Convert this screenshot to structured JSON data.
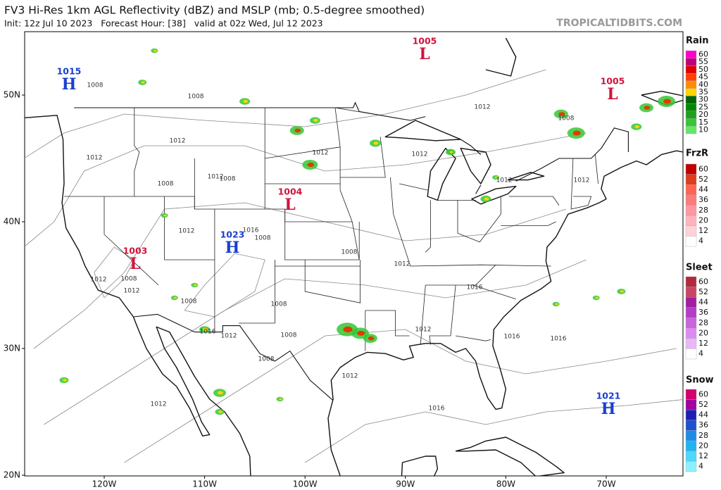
{
  "header": {
    "title": "FV3 Hi-Res 1km AGL Reflectivity (dBZ) and MSLP (mb; 0.5-degree smoothed)",
    "subtitle": "Init: 12z Jul 10 2023   Forecast Hour: [38]   valid at 02z Wed, Jul 12 2023",
    "source": "TROPICALTIDBITS.COM"
  },
  "map": {
    "lat_labels": [
      "50N",
      "40N",
      "30N",
      "20N"
    ],
    "lon_labels": [
      "120W",
      "110W",
      "100W",
      "90W",
      "80W",
      "70W"
    ],
    "pressure_centers": [
      {
        "value": 1015,
        "symbol": "H",
        "color": "#1a3fd0"
      },
      {
        "value": 1005,
        "symbol": "L",
        "color": "#d0143c"
      },
      {
        "value": 1005,
        "symbol": "L",
        "color": "#d0143c"
      },
      {
        "value": 1004,
        "symbol": "L",
        "color": "#d0143c"
      },
      {
        "value": 1003,
        "symbol": "L",
        "color": "#d0143c"
      },
      {
        "value": 1023,
        "symbol": "H",
        "color": "#1a3fd0"
      },
      {
        "value": 1021,
        "symbol": "H",
        "color": "#1a3fd0"
      }
    ],
    "isobar_labels": [
      1008,
      1008,
      1012,
      1012,
      1008,
      1012,
      1008,
      1012,
      1016,
      1008,
      1012,
      1012,
      1012,
      1008,
      1012,
      1012,
      1008,
      1012,
      1008,
      1012,
      1012,
      1008,
      1008,
      1008,
      1012,
      1016,
      1008,
      1012,
      1016,
      1012,
      1016,
      1016,
      1016,
      1012
    ]
  },
  "legend": [
    {
      "title": "Rain",
      "levels": [
        60,
        55,
        50,
        45,
        40,
        35,
        30,
        25,
        20,
        15,
        10
      ],
      "colors": [
        "#ff00cc",
        "#c0007a",
        "#e00000",
        "#ff4000",
        "#ff8c00",
        "#ffd400",
        "#006400",
        "#008a00",
        "#1ea01e",
        "#34c834",
        "#66e666"
      ]
    },
    {
      "title": "FrzR",
      "levels": [
        60,
        52,
        44,
        36,
        28,
        20,
        12,
        4
      ],
      "colors": [
        "#c00000",
        "#e03c1e",
        "#ff6450",
        "#ff7a7a",
        "#ff96a0",
        "#ffb4be",
        "#ffd2d8",
        "#ffffff"
      ]
    },
    {
      "title": "Sleet",
      "levels": [
        60,
        52,
        44,
        36,
        28,
        20,
        12,
        4
      ],
      "colors": [
        "#b4283c",
        "#c84664",
        "#a01ea0",
        "#b43cc8",
        "#c864dc",
        "#dc8cf0",
        "#e8b8f6",
        "#ffffff"
      ]
    },
    {
      "title": "Snow",
      "levels": [
        60,
        52,
        44,
        36,
        28,
        20,
        12,
        4
      ],
      "colors": [
        "#d2006e",
        "#a000a0",
        "#1e1eb4",
        "#1e50d2",
        "#1e8ce6",
        "#1eb4f0",
        "#50d7fa",
        "#8cf0ff"
      ]
    }
  ]
}
